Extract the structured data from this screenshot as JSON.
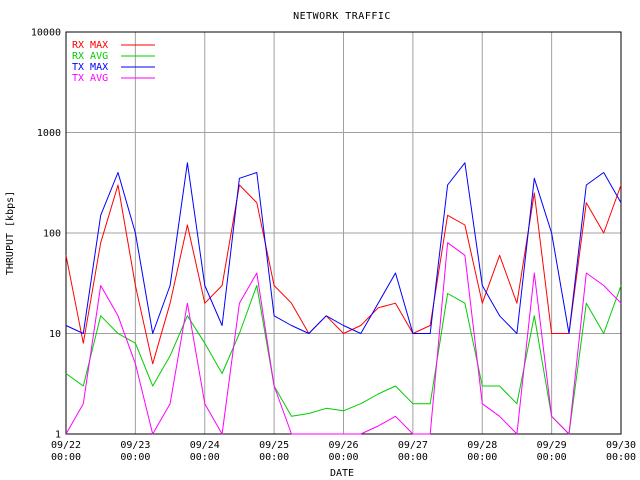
{
  "chart_data": {
    "type": "line",
    "title": "NETWORK TRAFFIC",
    "xlabel": "DATE",
    "ylabel": "THRUPUT [kbps]",
    "yscale": "log",
    "ylim": [
      1,
      10000
    ],
    "xlim": [
      "09/22 00:00",
      "09/30 00:00"
    ],
    "grid": true,
    "legend_position": "top-left",
    "x_ticks": [
      {
        "date": "09/22",
        "time": "00:00"
      },
      {
        "date": "09/23",
        "time": "00:00"
      },
      {
        "date": "09/24",
        "time": "00:00"
      },
      {
        "date": "09/25",
        "time": "00:00"
      },
      {
        "date": "09/26",
        "time": "00:00"
      },
      {
        "date": "09/27",
        "time": "00:00"
      },
      {
        "date": "09/28",
        "time": "00:00"
      },
      {
        "date": "09/29",
        "time": "00:00"
      },
      {
        "date": "09/30",
        "time": "00:00"
      }
    ],
    "y_ticks": [
      "1",
      "10",
      "100",
      "1000",
      "10000"
    ],
    "x": [
      "09/22 00:00",
      "09/22 06:00",
      "09/22 12:00",
      "09/22 18:00",
      "09/23 00:00",
      "09/23 06:00",
      "09/23 12:00",
      "09/23 18:00",
      "09/24 00:00",
      "09/24 06:00",
      "09/24 12:00",
      "09/24 18:00",
      "09/25 00:00",
      "09/25 06:00",
      "09/25 12:00",
      "09/25 18:00",
      "09/26 00:00",
      "09/26 06:00",
      "09/26 12:00",
      "09/26 18:00",
      "09/27 00:00",
      "09/27 06:00",
      "09/27 12:00",
      "09/27 18:00",
      "09/28 00:00",
      "09/28 06:00",
      "09/28 12:00",
      "09/28 18:00",
      "09/29 00:00",
      "09/29 06:00",
      "09/29 12:00",
      "09/29 18:00",
      "09/30 00:00"
    ],
    "series": [
      {
        "name": "RX MAX",
        "color": "#ff0000",
        "values": [
          60,
          8,
          80,
          300,
          30,
          5,
          20,
          120,
          20,
          30,
          300,
          200,
          30,
          20,
          10,
          15,
          10,
          12,
          18,
          20,
          10,
          12,
          150,
          120,
          20,
          60,
          20,
          250,
          10,
          10,
          200,
          100,
          300
        ]
      },
      {
        "name": "RX AVG",
        "color": "#00cc00",
        "values": [
          4,
          3,
          15,
          10,
          8,
          3,
          6,
          15,
          8,
          4,
          10,
          30,
          3,
          1.5,
          1.6,
          1.8,
          1.7,
          2,
          2.5,
          3,
          2,
          2,
          25,
          20,
          3,
          3,
          2,
          15,
          1.5,
          1,
          20,
          10,
          30
        ]
      },
      {
        "name": "TX MAX",
        "color": "#0000ff",
        "values": [
          12,
          10,
          150,
          400,
          100,
          10,
          30,
          500,
          30,
          12,
          350,
          400,
          15,
          12,
          10,
          15,
          12,
          10,
          20,
          40,
          10,
          10,
          300,
          500,
          30,
          15,
          10,
          350,
          100,
          10,
          300,
          400,
          200
        ]
      },
      {
        "name": "TX AVG",
        "color": "#ff00ff",
        "values": [
          1,
          2,
          30,
          15,
          5,
          1,
          2,
          20,
          2,
          1,
          20,
          40,
          3,
          1,
          1,
          1,
          1,
          1,
          1.2,
          1.5,
          1,
          1,
          80,
          60,
          2,
          1.5,
          1,
          40,
          1.5,
          1,
          40,
          30,
          20
        ]
      }
    ]
  }
}
